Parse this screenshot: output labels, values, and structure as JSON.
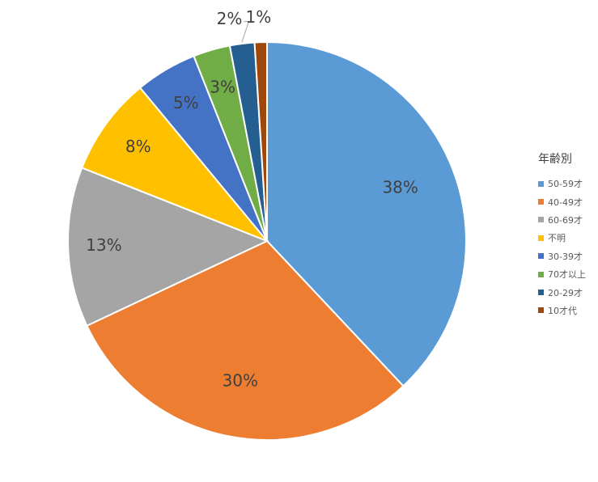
{
  "chart_data": {
    "type": "pie",
    "legend_title": "年齢別",
    "legend_position": "right",
    "categories": [
      "50-59才",
      "40-49才",
      "60-69才",
      "不明",
      "30-39才",
      "70才以上",
      "20-29才",
      "10才代"
    ],
    "values": [
      38,
      30,
      13,
      8,
      5,
      3,
      2,
      1
    ],
    "labels": [
      "38%",
      "30%",
      "13%",
      "8%",
      "5%",
      "3%",
      "2%",
      "1%"
    ],
    "colors": [
      "#5B9BD5",
      "#ED7D31",
      "#A5A5A5",
      "#FFC000",
      "#4472C4",
      "#70AD47",
      "#255E91",
      "#9E480E"
    ]
  }
}
